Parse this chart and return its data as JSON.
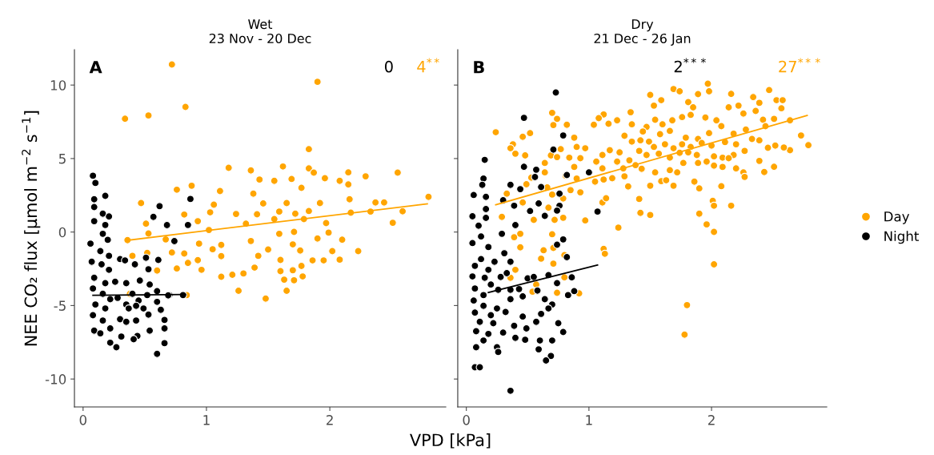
{
  "chart_data": [
    {
      "type": "scatter",
      "title": "Wet\n23 Nov - 20 Dec",
      "ylabel": "NEE CO₂ flux [µmol m$^{−2}$ s$^{−1}$]",
      "xlabel": "VPD [kPa]",
      "annotations": [
        "A",
        "0",
        "4$^{**}$"
      ],
      "xlim": [
        -0.07,
        2.94
      ],
      "xticks": [
        0,
        1,
        2
      ],
      "ylim": [
        -11.9,
        12.4
      ],
      "yticks": [
        -10,
        -5,
        0,
        5,
        10
      ],
      "grid": false,
      "legend": "right",
      "series": [
        {
          "name": "Day",
          "color": "#ffa500",
          "marker": "circle",
          "x": [
            0.72,
            1.9,
            0.34,
            0.53,
            0.83,
            1.83,
            1.18,
            1.36,
            1.62,
            1.83,
            1.87,
            2.15,
            2.55,
            2.29,
            1.43,
            1.55,
            1.69,
            1.96,
            2.08,
            0.88,
            0.76,
            1.11,
            1.38,
            1.77,
            2.15,
            2.8,
            0.47,
            1.06,
            1.46,
            1.65,
            1.92,
            2.37,
            2.44,
            2.16,
            0.82,
            1.03,
            1.24,
            1.41,
            1.59,
            1.72,
            1.83,
            2.17,
            2.33,
            2.59,
            0.51,
            0.93,
            1.32,
            1.55,
            1.79,
            1.97,
            2.51,
            0.53,
            1.02,
            1.59,
            1.71,
            1.9,
            1.99,
            0.36,
            0.67,
            0.94,
            1.12,
            1.36,
            1.7,
            2.1,
            1.05,
            1.5,
            1.76,
            2.02,
            2.23,
            0.72,
            0.82,
            1.12,
            1.42,
            1.6,
            1.86,
            1.95,
            2.08,
            0.4,
            0.52,
            0.76,
            0.85,
            0.93,
            0.96,
            1.39,
            1.6,
            1.7,
            1.77,
            0.6,
            1.12,
            1.21,
            1.3,
            1.63,
            1.71,
            1.78,
            1.26,
            1.65,
            1.48,
            0.84,
            0.38
          ],
          "values": [
            11.4,
            10.22,
            7.71,
            7.93,
            8.51,
            5.64,
            4.37,
            4.19,
            4.46,
            4.33,
            4.04,
            4.06,
            4.04,
            3.79,
            3.57,
            3.48,
            3.61,
            3.66,
            3.48,
            3.15,
            2.88,
            2.79,
            2.61,
            3.01,
            3.24,
            2.39,
            1.97,
            1.86,
            1.94,
            1.97,
            1.97,
            2.01,
            2.01,
            2.23,
            1.19,
            1.34,
            1.23,
            1.21,
            1.39,
            1.25,
            1.43,
            1.32,
            1.39,
            1.41,
            0.57,
            0.74,
            0.57,
            0.88,
            0.88,
            0.61,
            0.63,
            -0.1,
            0.14,
            -0.12,
            0.01,
            -0.44,
            -0.04,
            -0.55,
            -0.5,
            -0.79,
            -0.88,
            -0.61,
            -0.84,
            -0.52,
            -1.17,
            -1.19,
            -1.26,
            -1.3,
            -1.3,
            -1.39,
            -1.46,
            -1.64,
            -1.62,
            -1.9,
            -1.93,
            -1.93,
            -1.88,
            -1.62,
            -1.42,
            -2.48,
            -2.1,
            -1.91,
            -2.57,
            -2.42,
            -2.66,
            -2.6,
            -2.31,
            -2.62,
            -3.04,
            -2.91,
            -2.82,
            -3.24,
            -3.28,
            -3.02,
            -4.0,
            -4.0,
            -4.53,
            -4.29,
            -4.2
          ]
        },
        {
          "name": "Night",
          "color": "#000000",
          "marker": "circle",
          "x": [
            0.08,
            0.1,
            0.18,
            0.09,
            0.09,
            0.16,
            0.21,
            0.09,
            0.18,
            0.16,
            0.2,
            0.06,
            0.14,
            0.21,
            0.07,
            0.15,
            0.21,
            0.09,
            0.18,
            0.08,
            0.16,
            0.22,
            0.1,
            0.18,
            0.08,
            0.16,
            0.09,
            0.14,
            0.22,
            0.22,
            0.27,
            0.31,
            0.3,
            0.3,
            0.34,
            0.42,
            0.51,
            0.61,
            0.53,
            0.26,
            0.35,
            0.46,
            0.54,
            0.6,
            0.7,
            0.4,
            0.45,
            0.52,
            0.28,
            0.35,
            0.43,
            0.49,
            0.6,
            0.63,
            0.37,
            0.53,
            0.35,
            0.43,
            0.66,
            0.66,
            0.44,
            0.41,
            0.54,
            0.66,
            0.6,
            0.62,
            0.87,
            0.57,
            0.68,
            0.85,
            0.74,
            0.69,
            0.81
          ],
          "values": [
            3.83,
            3.34,
            2.46,
            2.23,
            1.7,
            1.25,
            1.06,
            0.74,
            0.48,
            -0.12,
            -0.53,
            -0.79,
            -1.3,
            -1.62,
            -2.02,
            -2.2,
            -2.57,
            -3.11,
            -3.48,
            -3.84,
            -4.2,
            -4.57,
            -4.93,
            -5.2,
            -5.66,
            -6.02,
            -6.71,
            -6.89,
            -6.56,
            -7.53,
            -7.84,
            -7.11,
            -5.93,
            -1.84,
            -1.93,
            -2.2,
            -1.75,
            -1.9,
            -2.53,
            -3.38,
            -3.48,
            -3.3,
            -3.57,
            -4.02,
            -4.29,
            -4.2,
            -4.66,
            -4.29,
            -4.48,
            -4.93,
            -5.02,
            -5.2,
            -4.75,
            -5.29,
            -5.2,
            -5.62,
            -6.11,
            -6.02,
            -5.98,
            -6.56,
            -7.07,
            -7.29,
            -6.71,
            -7.56,
            -8.29,
            1.76,
            2.25,
            1.03,
            0.47,
            0.48,
            -0.62,
            -4.31,
            -4.29
          ]
        },
        {
          "type": "line",
          "color": "#ffa500",
          "x": [
            0.35,
            2.79
          ],
          "values": [
            -0.57,
            1.92
          ]
        },
        {
          "type": "line",
          "color": "#000000",
          "x": [
            0.08,
            0.83
          ],
          "values": [
            -4.3,
            -4.25
          ]
        }
      ]
    },
    {
      "type": "scatter",
      "title": "Dry\n21 Dec - 26 Jan",
      "annotations": [
        "B",
        "2$^{***}$",
        "27$^{***}$"
      ],
      "xlim": [
        -0.07,
        2.94
      ],
      "xticks": [
        0,
        1,
        2
      ],
      "ylim": [
        -11.9,
        12.4
      ],
      "yticks": [
        -10,
        -5,
        0,
        5,
        10
      ],
      "tick_labels": "x",
      "grid": false,
      "legend": "right",
      "series": [
        {
          "name": "Day",
          "color": "#ffa500",
          "marker": "circle",
          "x": [
            0.24,
            0.38,
            0.36,
            0.46,
            0.52,
            0.4,
            0.48,
            0.7,
            0.74,
            0.71,
            0.82,
            0.77,
            0.69,
            0.74,
            0.88,
            0.97,
            0.9,
            0.84,
            0.93,
            0.88,
            0.64,
            0.53,
            0.64,
            0.66,
            0.49,
            0.33,
            0.46,
            0.7,
            0.79,
            0.85,
            0.93,
            0.9,
            0.81,
            0.29,
            0.55,
            0.67,
            0.72,
            0.79,
            0.39,
            0.44,
            0.7,
            0.44,
            0.63,
            0.71,
            0.8,
            0.61,
            0.4,
            0.71,
            0.8,
            0.57,
            0.54,
            0.74,
            0.92,
            0.36,
            0.97,
            1.04,
            1.12,
            1.08,
            1.16,
            1.23,
            1.34,
            1.35,
            1.47,
            1.54,
            1.6,
            1.5,
            1.53,
            1.59,
            1.69,
            1.74,
            1.81,
            1.89,
            1.97,
            1.98,
            2.16,
            2.34,
            2.47,
            2.39,
            2.22,
            2.14,
            2.53,
            2.58,
            2.57,
            1.85,
            1.83,
            1.95,
            1.76,
            1.68,
            2.04,
            2.26,
            2.36,
            2.42,
            2.51,
            2.64,
            2.73,
            2.79,
            2.64,
            2.59,
            2.52,
            2.46,
            2.44,
            2.28,
            2.18,
            2.08,
            1.98,
            1.89,
            1.79,
            1.66,
            1.58,
            1.44,
            1.29,
            1.35,
            1.42,
            1.49,
            1.53,
            1.62,
            1.69,
            1.76,
            1.83,
            1.92,
            2.0,
            2.11,
            2.2,
            2.33,
            2.39,
            2.27,
            2.18,
            2.09,
            2.02,
            1.88,
            1.81,
            1.74,
            1.66,
            1.57,
            1.47,
            1.41,
            1.33,
            1.25,
            1.17,
            1.11,
            1.06,
            1.11,
            1.23,
            1.28,
            1.38,
            1.43,
            1.54,
            1.66,
            1.72,
            1.77,
            1.89,
            1.96,
            2.02,
            2.09,
            2.2,
            2.26,
            2.27,
            2.43,
            2.51,
            2.39,
            2.14,
            1.19,
            1.05,
            1.12,
            1.29,
            1.32,
            1.5,
            1.59,
            1.63,
            1.69,
            1.86,
            1.9,
            2.08,
            1.41,
            1.11,
            1.14,
            1.42,
            1.5,
            1.24,
            1.9,
            2.01,
            2.02,
            2.16,
            1.96,
            2.02,
            2.02,
            1.12,
            1.13,
            1.8,
            1.78
          ],
          "values": [
            6.79,
            5.97,
            5.7,
            6.48,
            6.73,
            5.33,
            5.21,
            8.11,
            7.7,
            7.28,
            7.3,
            5.64,
            5.21,
            5.1,
            6.42,
            5.7,
            5.79,
            5.06,
            5.02,
            4.43,
            4.7,
            3.7,
            4.06,
            3.03,
            3.25,
            2.61,
            2.01,
            2.55,
            2.28,
            2.85,
            2.7,
            3.64,
            3.83,
            1.03,
            0.83,
            1.66,
            0.83,
            0.97,
            -0.35,
            -0.12,
            -0.15,
            -1.04,
            -1.24,
            -1.08,
            -1.57,
            -1.81,
            -2.57,
            -2.15,
            -3.08,
            -3.57,
            -4.06,
            -4.13,
            -4.17,
            -3.11,
            0.79,
            7.3,
            8.0,
            7.75,
            7.37,
            7.6,
            8.15,
            7.33,
            7.15,
            7.64,
            7.33,
            9.33,
            8.6,
            8.97,
            9.73,
            9.57,
            8.84,
            9.38,
            10.09,
            9.57,
            9.4,
            9.18,
            9.66,
            8.79,
            8.6,
            8.48,
            8.97,
            8.97,
            8.42,
            8.48,
            7.97,
            7.79,
            7.82,
            7.6,
            7.6,
            8.06,
            8.24,
            7.64,
            7.7,
            7.6,
            6.57,
            5.91,
            5.57,
            5.75,
            5.88,
            5.73,
            7.2,
            6.97,
            6.69,
            7.2,
            6.73,
            6.33,
            6.42,
            6.88,
            6.66,
            6.84,
            6.55,
            6.15,
            6.24,
            6.15,
            5.79,
            5.97,
            5.7,
            5.97,
            5.79,
            6.06,
            5.88,
            6.12,
            5.97,
            6.33,
            6.24,
            5.52,
            5.24,
            5.06,
            5.15,
            5.24,
            5.42,
            5.39,
            5.06,
            5.33,
            5.24,
            5.52,
            4.88,
            5.42,
            5.57,
            5.24,
            4.79,
            4.33,
            4.79,
            4.33,
            4.55,
            4.3,
            4.06,
            4.21,
            4.06,
            4.7,
            4.7,
            4.79,
            4.52,
            4.43,
            4.33,
            4.06,
            3.75,
            4.08,
            4.44,
            4.84,
            5.02,
            3.66,
            3.43,
            3.57,
            3.79,
            3.1,
            3.15,
            3.46,
            3.52,
            3.15,
            3.43,
            2.97,
            3.12,
            2.25,
            2.01,
            2.3,
            1.3,
            1.16,
            0.3,
            1.25,
            2.12,
            1.79,
            1.79,
            0.52,
            0.01,
            -2.2,
            -1.15,
            -1.48,
            -4.97,
            -6.98
          ]
        },
        {
          "name": "Night",
          "color": "#000000",
          "marker": "circle",
          "x": [
            0.73,
            0.47,
            0.79,
            0.71,
            0.15,
            0.47,
            0.57,
            0.56,
            0.82,
            1.0,
            0.14,
            0.13,
            0.36,
            0.44,
            0.61,
            0.76,
            0.06,
            0.16,
            0.3,
            0.39,
            0.59,
            0.76,
            0.16,
            0.52,
            0.74,
            1.07,
            0.05,
            0.64,
            0.16,
            0.1,
            0.4,
            0.29,
            0.12,
            0.05,
            0.18,
            0.31,
            0.74,
            0.79,
            0.82,
            0.36,
            0.12,
            0.23,
            0.07,
            0.18,
            0.05,
            0.15,
            0.28,
            0.33,
            0.5,
            0.55,
            0.67,
            0.74,
            0.86,
            0.2,
            0.07,
            0.26,
            0.36,
            0.43,
            0.58,
            0.14,
            0.06,
            0.36,
            0.46,
            0.64,
            0.83,
            0.88,
            0.14,
            0.25,
            0.7,
            0.07,
            0.2,
            0.32,
            0.46,
            0.61,
            0.67,
            0.11,
            0.22,
            0.39,
            0.49,
            0.57,
            0.75,
            0.08,
            0.18,
            0.3,
            0.4,
            0.48,
            0.6,
            0.7,
            0.79,
            0.14,
            0.08,
            0.25,
            0.26,
            0.59,
            0.69,
            0.65,
            0.07,
            0.11,
            0.36
          ],
          "values": [
            9.49,
            7.77,
            6.57,
            5.61,
            4.91,
            4.44,
            4.24,
            3.74,
            3.88,
            4.06,
            3.64,
            3.21,
            3.21,
            2.92,
            3.06,
            2.61,
            2.52,
            2.39,
            2.16,
            1.79,
            1.94,
            1.79,
            1.56,
            1.43,
            1.46,
            1.39,
            1.07,
            1.1,
            0.96,
            0.43,
            0.47,
            -0.12,
            -0.3,
            -0.75,
            -1.02,
            -1.44,
            -0.86,
            -0.5,
            -1.71,
            -2.02,
            -1.84,
            -2.02,
            -2.3,
            -2.57,
            -3.02,
            -3.11,
            -3.06,
            -2.8,
            -3.15,
            -3.06,
            -2.93,
            -3.48,
            -3.08,
            -3.57,
            -3.84,
            -3.93,
            -3.93,
            -3.88,
            -3.98,
            -4.29,
            -4.66,
            -4.57,
            -4.38,
            -4.57,
            -4.29,
            -4.02,
            -5.02,
            -5.2,
            -4.93,
            -5.48,
            -5.66,
            -5.44,
            -5.75,
            -5.57,
            -5.2,
            -6.11,
            -6.2,
            -6.38,
            -6.56,
            -6.11,
            -6.2,
            -6.75,
            -6.93,
            -6.84,
            -7.2,
            -7.33,
            -7.38,
            -7.38,
            -6.8,
            -7.38,
            -7.84,
            -7.84,
            -8.16,
            -7.98,
            -8.43,
            -8.74,
            -9.2,
            -9.2,
            -10.8
          ]
        },
        {
          "type": "line",
          "color": "#ffa500",
          "x": [
            0.24,
            2.78
          ],
          "values": [
            1.85,
            7.93
          ]
        },
        {
          "type": "line",
          "color": "#000000",
          "x": [
            0.18,
            1.07
          ],
          "values": [
            -4.11,
            -2.24
          ]
        }
      ]
    }
  ]
}
